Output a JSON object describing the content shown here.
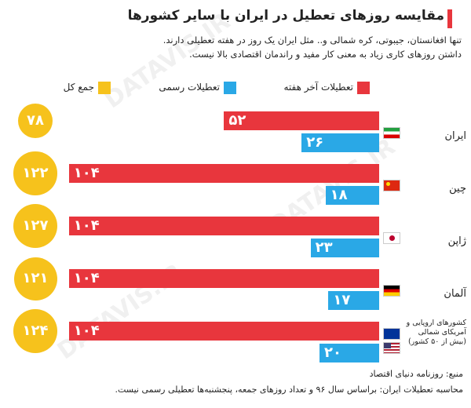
{
  "chart_data": {
    "type": "bar",
    "orientation": "horizontal",
    "title": "مقایسه روزهای تعطیل در ایران با سایر کشورها",
    "subtitle": [
      "تنها افغانستان، جیبوتی، کره شمالی و.. مثل ایران یک روز در هفته تعطیلی دارند.",
      "داشتن روزهای کاری زیاد به معنی کار مفید و راندمان اقتصادی بالا نیست."
    ],
    "categories": [
      "ایران",
      "چین",
      "ژاپن",
      "آلمان",
      "کشورهای اروپایی و آمریکای شمالی (بیش از ۵۰ کشور)"
    ],
    "series": [
      {
        "name": "تعطیلات آخر هفته",
        "color": "#e8363d",
        "mark": "bar",
        "values": [
          52,
          104,
          104,
          104,
          104
        ],
        "value_labels": [
          "۵۲",
          "۱۰۴",
          "۱۰۴",
          "۱۰۴",
          "۱۰۴"
        ]
      },
      {
        "name": "تعطیلات رسمی",
        "color": "#2aa8e6",
        "mark": "bar",
        "values": [
          26,
          18,
          23,
          17,
          20
        ],
        "value_labels": [
          "۲۶",
          "۱۸",
          "۲۳",
          "۱۷",
          "۲۰"
        ]
      },
      {
        "name": "جمع کل",
        "color": "#f6c21c",
        "mark": "circle",
        "values": [
          78,
          122,
          127,
          121,
          124
        ],
        "value_labels": [
          "۷۸",
          "۱۲۲",
          "۱۲۷",
          "۱۲۱",
          "۱۲۴"
        ]
      }
    ],
    "footer": [
      "منبع: روزنامه دنیای اقتصاد",
      "محاسبه تعطیلات ایران: براساس سال ۹۶ و تعداد روزهای جمعه، پنجشنبه‌ها تعطیلی رسمی نیست."
    ],
    "watermark": "DATAVIS.IR"
  }
}
